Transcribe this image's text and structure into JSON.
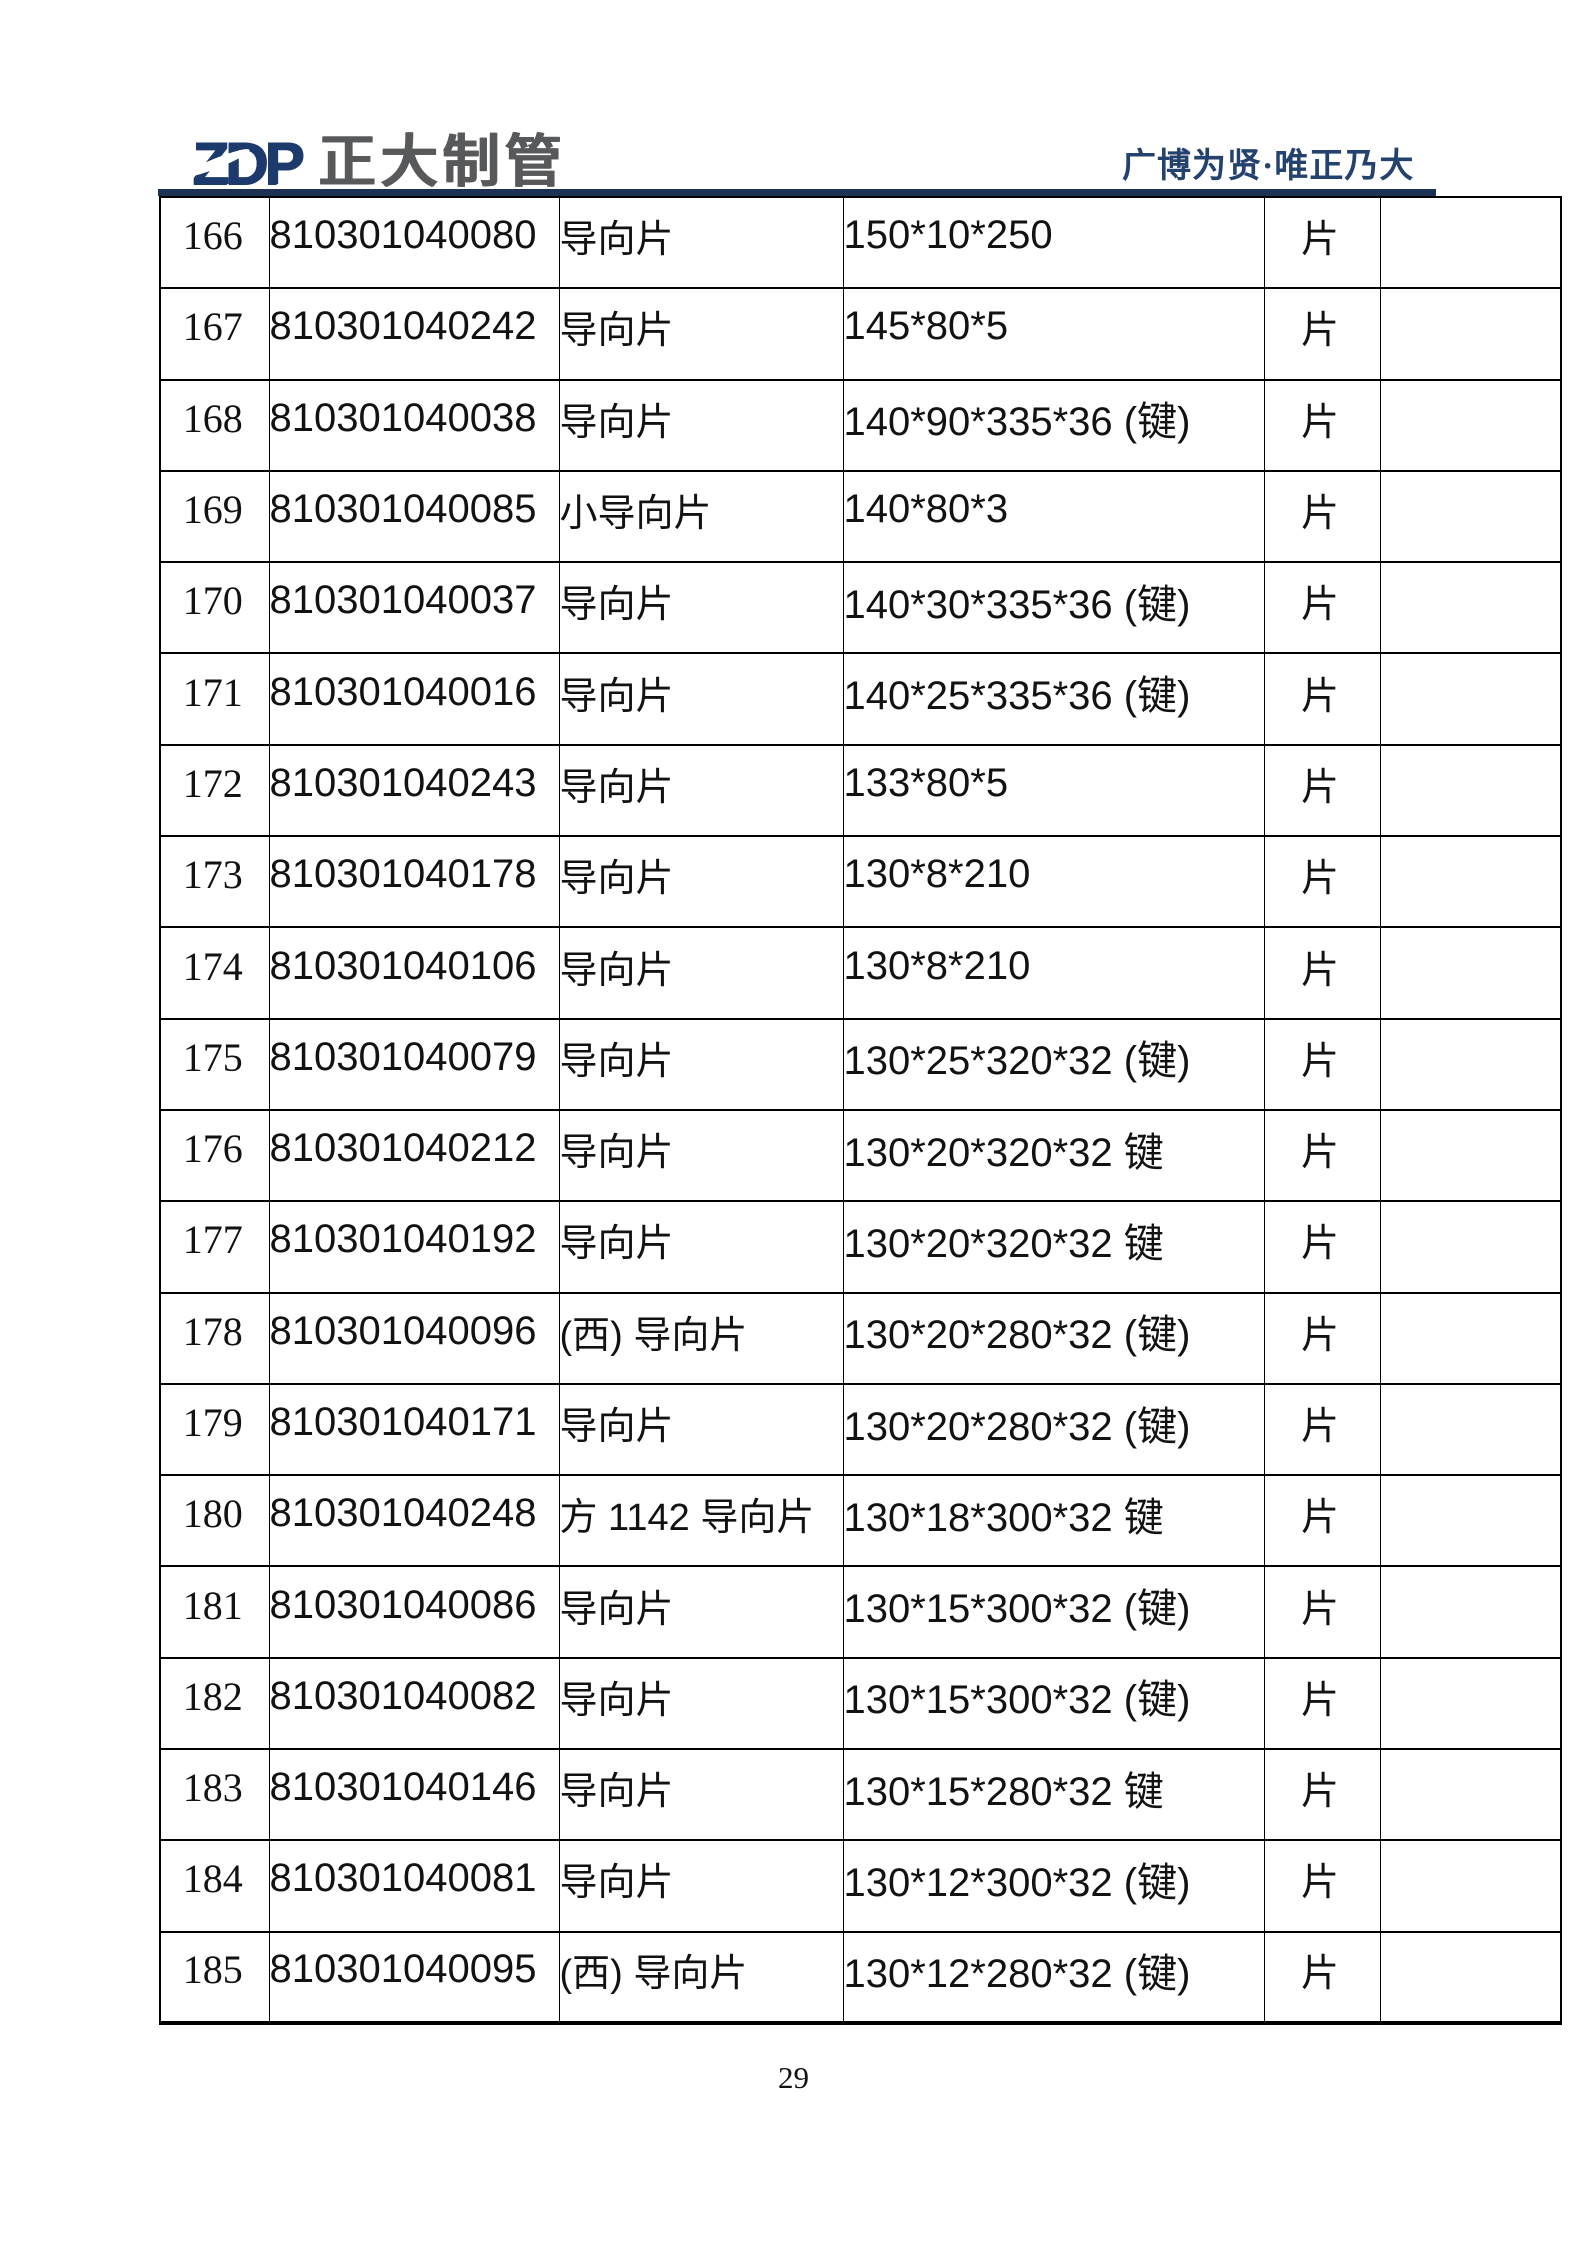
{
  "header": {
    "logo_text": "ZDP",
    "company_name": "正大制管",
    "tagline": "广博为贤·唯正乃大"
  },
  "colors": {
    "logo_navy": "#1c3a6c",
    "logo_gray": "#58595b",
    "tagline_navy": "#24426e",
    "rule_navy": "#1c3154"
  },
  "table": {
    "rows": [
      {
        "no": "166",
        "code": "810301040080",
        "name": "导向片",
        "spec": "150*10*250",
        "unit": "片",
        "extra": ""
      },
      {
        "no": "167",
        "code": "810301040242",
        "name": "导向片",
        "spec": "145*80*5",
        "unit": "片",
        "extra": ""
      },
      {
        "no": "168",
        "code": "810301040038",
        "name": "导向片",
        "spec": "140*90*335*36 (键)",
        "unit": "片",
        "extra": ""
      },
      {
        "no": "169",
        "code": "810301040085",
        "name": "小导向片",
        "spec": "140*80*3",
        "unit": "片",
        "extra": ""
      },
      {
        "no": "170",
        "code": "810301040037",
        "name": "导向片",
        "spec": "140*30*335*36 (键)",
        "unit": "片",
        "extra": ""
      },
      {
        "no": "171",
        "code": "810301040016",
        "name": "导向片",
        "spec": "140*25*335*36 (键)",
        "unit": "片",
        "extra": ""
      },
      {
        "no": "172",
        "code": "810301040243",
        "name": "导向片",
        "spec": "133*80*5",
        "unit": "片",
        "extra": ""
      },
      {
        "no": "173",
        "code": "810301040178",
        "name": "导向片",
        "spec": "130*8*210",
        "unit": "片",
        "extra": ""
      },
      {
        "no": "174",
        "code": "810301040106",
        "name": "导向片",
        "spec": "130*8*210",
        "unit": "片",
        "extra": ""
      },
      {
        "no": "175",
        "code": "810301040079",
        "name": "导向片",
        "spec": "130*25*320*32 (键)",
        "unit": "片",
        "extra": ""
      },
      {
        "no": "176",
        "code": "810301040212",
        "name": "导向片",
        "spec": "130*20*320*32 键",
        "unit": "片",
        "extra": ""
      },
      {
        "no": "177",
        "code": "810301040192",
        "name": "导向片",
        "spec": "130*20*320*32 键",
        "unit": "片",
        "extra": ""
      },
      {
        "no": "178",
        "code": "810301040096",
        "name": "(西) 导向片",
        "spec": "130*20*280*32 (键)",
        "unit": "片",
        "extra": ""
      },
      {
        "no": "179",
        "code": "810301040171",
        "name": "导向片",
        "spec": "130*20*280*32 (键)",
        "unit": "片",
        "extra": ""
      },
      {
        "no": "180",
        "code": "810301040248",
        "name": "方 1142 导向片",
        "spec": "130*18*300*32 键",
        "unit": "片",
        "extra": ""
      },
      {
        "no": "181",
        "code": "810301040086",
        "name": "导向片",
        "spec": "130*15*300*32 (键)",
        "unit": "片",
        "extra": ""
      },
      {
        "no": "182",
        "code": "810301040082",
        "name": "导向片",
        "spec": "130*15*300*32 (键)",
        "unit": "片",
        "extra": ""
      },
      {
        "no": "183",
        "code": "810301040146",
        "name": "导向片",
        "spec": "130*15*280*32 键",
        "unit": "片",
        "extra": ""
      },
      {
        "no": "184",
        "code": "810301040081",
        "name": "导向片",
        "spec": "130*12*300*32 (键)",
        "unit": "片",
        "extra": ""
      },
      {
        "no": "185",
        "code": "810301040095",
        "name": "(西) 导向片",
        "spec": "130*12*280*32 (键)",
        "unit": "片",
        "extra": ""
      }
    ]
  },
  "footer": {
    "page_number": "29"
  }
}
